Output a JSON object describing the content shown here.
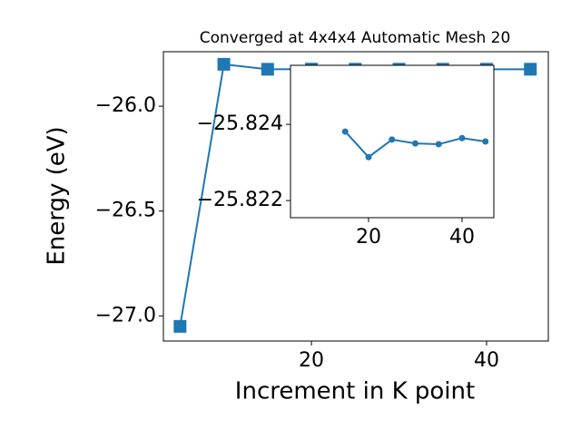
{
  "chart_data": [
    {
      "type": "line",
      "title": "Converged at 4x4x4 Automatic Mesh 20",
      "xlabel": "Increment in K point",
      "ylabel": "Energy (eV)",
      "x": [
        5,
        10,
        15,
        20,
        25,
        30,
        35,
        40,
        45
      ],
      "series": [
        {
          "name": "Energy",
          "color": "#1f77b4",
          "marker": "square",
          "values": [
            -27.05,
            -25.8,
            -25.8238,
            -25.8231,
            -25.8236,
            -25.8235,
            -25.8235,
            -25.8236,
            -25.8236
          ]
        }
      ],
      "xlim": [
        3.1,
        47.05
      ],
      "ylim": [
        -27.12,
        -25.74
      ],
      "xticks": [
        20,
        40
      ],
      "yticks": [
        {
          "value": -27.0,
          "label": "−27.0"
        },
        {
          "value": -26.5,
          "label": "−26.5"
        },
        {
          "value": -26.0,
          "label": "−26.0"
        }
      ]
    },
    {
      "type": "line",
      "x": [
        15,
        20,
        25,
        30,
        35,
        40,
        45
      ],
      "series": [
        {
          "name": "Energy",
          "color": "#1f77b4",
          "marker": "circle",
          "values": [
            -25.82381,
            -25.82314,
            -25.8236,
            -25.8235,
            -25.82348,
            -25.82364,
            -25.82355
          ]
        }
      ],
      "xlim": [
        3.3,
        46.8
      ],
      "ylim": [
        -25.82155,
        -25.82555
      ],
      "xticks": [
        20,
        40
      ],
      "yticks": [
        {
          "value": -25.822,
          "label": "−25.822"
        },
        {
          "value": -25.824,
          "label": "−25.824"
        }
      ]
    }
  ]
}
